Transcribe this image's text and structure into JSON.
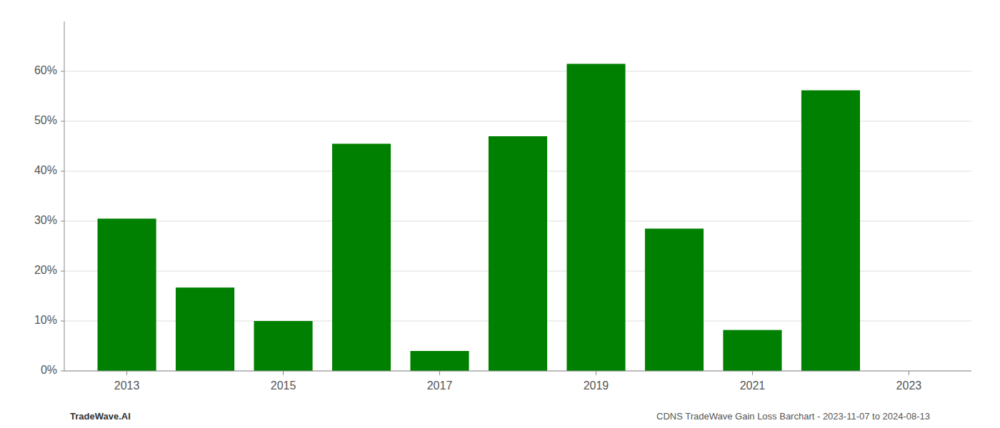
{
  "chart_data": {
    "type": "bar",
    "x": [
      2013,
      2014,
      2015,
      2016,
      2017,
      2018,
      2019,
      2020,
      2021,
      2022
    ],
    "values": [
      0.305,
      0.167,
      0.1,
      0.455,
      0.04,
      0.47,
      0.615,
      0.285,
      0.082,
      0.562
    ],
    "color": "#008000",
    "xlim": [
      2012.2,
      2023.8
    ],
    "xticks": [
      2013,
      2015,
      2017,
      2019,
      2021,
      2023
    ],
    "ylim": [
      0,
      0.7
    ],
    "yticks": [
      {
        "value": 0,
        "label": "0%"
      },
      {
        "value": 0.1,
        "label": "10%"
      },
      {
        "value": 0.2,
        "label": "20%"
      },
      {
        "value": 0.3,
        "label": "30%"
      },
      {
        "value": 0.4,
        "label": "40%"
      },
      {
        "value": 0.5,
        "label": "50%"
      },
      {
        "value": 0.6,
        "label": "60%"
      }
    ],
    "grid": true,
    "annotations": [
      "TradeWave.AI",
      "CDNS TradeWave Gain Loss Barchart - 2023-11-07 to 2024-08-13"
    ]
  }
}
